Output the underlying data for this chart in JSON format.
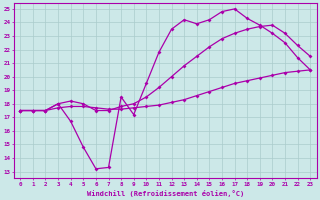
{
  "xlabel": "Windchill (Refroidissement éolien,°C)",
  "background_color": "#cce8e8",
  "grid_color": "#aacccc",
  "line_color": "#aa00aa",
  "marker": "D",
  "markersize": 2,
  "linewidth": 0.9,
  "xlim": [
    -0.5,
    23.5
  ],
  "ylim": [
    12.5,
    25.4
  ],
  "xticks": [
    0,
    1,
    2,
    3,
    4,
    5,
    6,
    7,
    8,
    9,
    10,
    11,
    12,
    13,
    14,
    15,
    16,
    17,
    18,
    19,
    20,
    21,
    22,
    23
  ],
  "yticks": [
    13,
    14,
    15,
    16,
    17,
    18,
    19,
    20,
    21,
    22,
    23,
    24,
    25
  ],
  "curve1_x": [
    0,
    1,
    2,
    3,
    4,
    5,
    6,
    7,
    8,
    9,
    10,
    11,
    12,
    13,
    14,
    15,
    16,
    17,
    18,
    19,
    20,
    21,
    22,
    23
  ],
  "curve1_y": [
    17.5,
    17.5,
    17.5,
    18.0,
    16.7,
    14.8,
    13.2,
    13.3,
    18.5,
    17.2,
    19.5,
    21.8,
    23.5,
    24.2,
    23.9,
    24.2,
    24.8,
    25.0,
    24.3,
    23.8,
    23.2,
    22.5,
    21.4,
    20.5
  ],
  "curve2_x": [
    0,
    1,
    2,
    3,
    4,
    5,
    6,
    7,
    8,
    9,
    10,
    11,
    12,
    13,
    14,
    15,
    16,
    17,
    18,
    19,
    20,
    21,
    22,
    23
  ],
  "curve2_y": [
    17.5,
    17.5,
    17.5,
    18.0,
    18.2,
    18.0,
    17.5,
    17.5,
    17.8,
    18.0,
    18.5,
    19.2,
    20.0,
    20.8,
    21.5,
    22.2,
    22.8,
    23.2,
    23.5,
    23.7,
    23.8,
    23.2,
    22.3,
    21.5
  ],
  "curve3_x": [
    0,
    1,
    2,
    3,
    4,
    5,
    6,
    7,
    8,
    9,
    10,
    11,
    12,
    13,
    14,
    15,
    16,
    17,
    18,
    19,
    20,
    21,
    22,
    23
  ],
  "curve3_y": [
    17.5,
    17.5,
    17.5,
    17.7,
    17.8,
    17.8,
    17.7,
    17.6,
    17.6,
    17.7,
    17.8,
    17.9,
    18.1,
    18.3,
    18.6,
    18.9,
    19.2,
    19.5,
    19.7,
    19.9,
    20.1,
    20.3,
    20.4,
    20.5
  ]
}
